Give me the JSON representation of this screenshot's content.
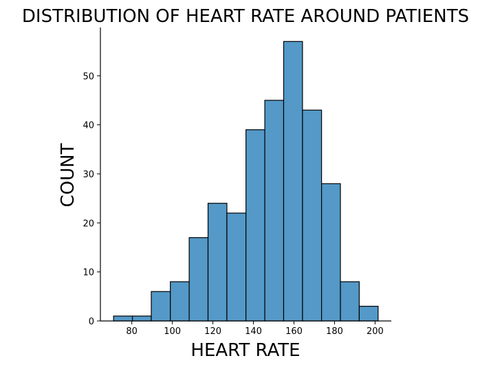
{
  "chart_data": {
    "type": "bar",
    "title": "DISTRIBUTION OF HEART RATE AROUND PATIENTS",
    "xlabel": "HEART RATE",
    "ylabel": "COUNT",
    "bar_color": "#5499c7",
    "bin_edges": [
      71,
      80.3,
      89.6,
      99.0,
      108.3,
      117.6,
      126.9,
      136.3,
      145.6,
      154.9,
      164.2,
      173.6,
      182.9,
      192.2,
      201.5
    ],
    "values": [
      1,
      1,
      6,
      8,
      17,
      24,
      22,
      39,
      45,
      57,
      43,
      28,
      8,
      3
    ],
    "xticks": [
      80,
      100,
      120,
      140,
      160,
      180,
      200
    ],
    "yticks": [
      0,
      10,
      20,
      30,
      40,
      50
    ],
    "xlim": [
      64.5,
      208
    ],
    "ylim": [
      0,
      59.85
    ],
    "grid": false
  }
}
